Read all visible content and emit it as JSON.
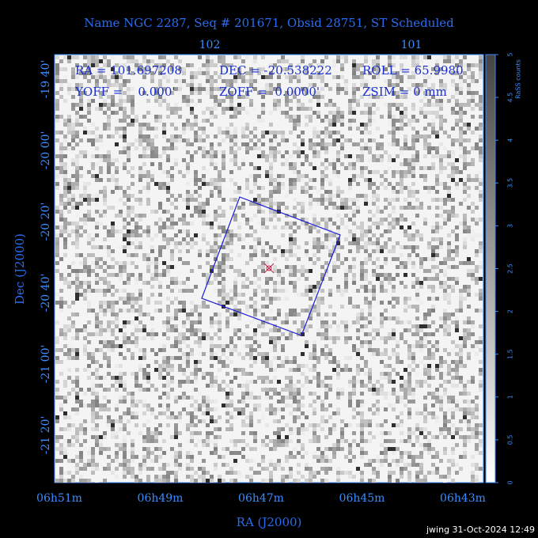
{
  "title": "Name NGC 2287, Seq # 201671, Obsid 28751, ST Scheduled",
  "info": [
    [
      "RA = 101.697208",
      "DEC = -20.538222",
      "ROLL = 65.9980"
    ],
    [
      "YOFF =    0.000'",
      "ZOFF =  0.0000'",
      "ZSIM = 0 mm"
    ]
  ],
  "top_ticks": [
    "102",
    "101"
  ],
  "left_ticks": [
    "-19 40'",
    "-20 00'",
    "-20 20'",
    "-20 40'",
    "-21 00'",
    "-21 20'"
  ],
  "bottom_ticks": [
    "06h51m",
    "06h49m",
    "06h47m",
    "06h45m",
    "06h43m"
  ],
  "x_label": "RA (J2000)",
  "y_label": "Dec (J2000)",
  "colorbar": {
    "label": "RaSS counts",
    "ticks": [
      0,
      0.5,
      1,
      1.5,
      2,
      2.5,
      3,
      3.5,
      4,
      4.5,
      5
    ]
  },
  "footer": "jwing 31-Oct-2024 12:49"
}
